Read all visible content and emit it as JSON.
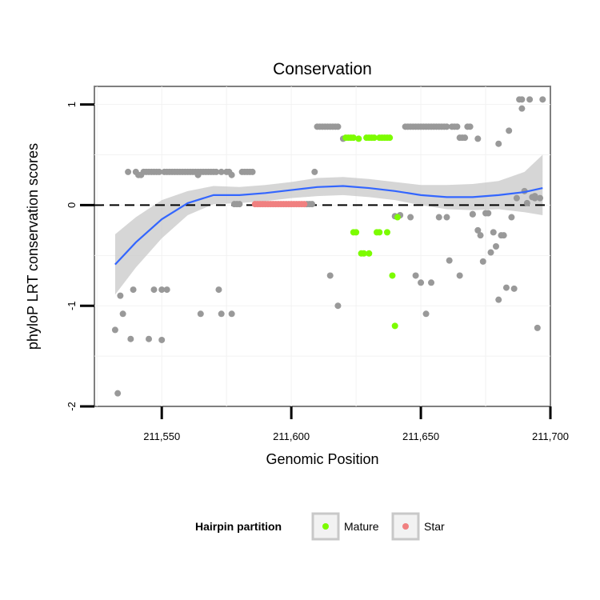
{
  "chart_data": {
    "type": "scatter",
    "title": "Conservation",
    "xlabel": "Genomic Position",
    "ylabel": "phyloP LRT conservation scores",
    "xlim": [
      211524,
      211700
    ],
    "ylim": [
      -2.0,
      1.18
    ],
    "x_ticks": [
      211550,
      211600,
      211650,
      211700
    ],
    "x_tick_labels": [
      "211,550",
      "211,600",
      "211,650",
      "211,700"
    ],
    "y_ticks": [
      -2,
      -1,
      0,
      1
    ],
    "y_tick_labels": [
      "-2",
      "-1",
      "0",
      "1"
    ],
    "grid": true,
    "reference_line": {
      "y": 0,
      "style": "dashed"
    },
    "legend": {
      "title": "Hairpin partition",
      "placement": "bottom",
      "entries": [
        {
          "label": "Mature",
          "color": "#7cfc00"
        },
        {
          "label": "Star",
          "color": "#f08080"
        }
      ]
    },
    "colors": {
      "other": "#999999",
      "Mature": "#7cfc00",
      "Star": "#f08080",
      "smooth": "#3366ff",
      "ribbon": "#c8c8c8"
    },
    "series": [
      {
        "group": "other",
        "points": [
          [
            211532,
            -1.24
          ],
          [
            211533,
            -1.87
          ],
          [
            211534,
            -0.9
          ],
          [
            211535,
            -1.08
          ],
          [
            211537,
            0.33
          ],
          [
            211538,
            -1.33
          ],
          [
            211539,
            -0.84
          ],
          [
            211540,
            0.33
          ],
          [
            211541,
            0.3
          ],
          [
            211542,
            0.3
          ],
          [
            211543,
            0.33
          ],
          [
            211544,
            0.33
          ],
          [
            211545,
            -1.33
          ],
          [
            211545,
            0.33
          ],
          [
            211546,
            0.33
          ],
          [
            211547,
            -0.84
          ],
          [
            211547,
            0.33
          ],
          [
            211548,
            0.33
          ],
          [
            211549,
            0.33
          ],
          [
            211550,
            -0.84
          ],
          [
            211550,
            -1.34
          ],
          [
            211551,
            0.33
          ],
          [
            211552,
            -0.84
          ],
          [
            211552,
            0.33
          ],
          [
            211553,
            0.33
          ],
          [
            211554,
            0.33
          ],
          [
            211555,
            0.33
          ],
          [
            211556,
            0.33
          ],
          [
            211557,
            0.33
          ],
          [
            211558,
            0.33
          ],
          [
            211559,
            0.33
          ],
          [
            211560,
            0.33
          ],
          [
            211561,
            0.33
          ],
          [
            211562,
            0.33
          ],
          [
            211563,
            0.33
          ],
          [
            211564,
            0.33
          ],
          [
            211564,
            0.3
          ],
          [
            211565,
            -1.08
          ],
          [
            211565,
            0.33
          ],
          [
            211566,
            0.33
          ],
          [
            211567,
            0.33
          ],
          [
            211568,
            0.33
          ],
          [
            211569,
            0.33
          ],
          [
            211570,
            0.33
          ],
          [
            211571,
            0.33
          ],
          [
            211572,
            -0.84
          ],
          [
            211573,
            -1.08
          ],
          [
            211573,
            0.33
          ],
          [
            211575,
            0.33
          ],
          [
            211576,
            0.33
          ],
          [
            211577,
            -1.08
          ],
          [
            211577,
            0.3
          ],
          [
            211578,
            0.01
          ],
          [
            211579,
            0.01
          ],
          [
            211580,
            0.01
          ],
          [
            211581,
            0.33
          ],
          [
            211582,
            0.33
          ],
          [
            211583,
            0.33
          ],
          [
            211584,
            0.33
          ],
          [
            211585,
            0.33
          ],
          [
            211606,
            0.01
          ],
          [
            211607,
            0.01
          ],
          [
            211608,
            0.01
          ],
          [
            211609,
            0.33
          ],
          [
            211610,
            0.78
          ],
          [
            211611,
            0.78
          ],
          [
            211612,
            0.78
          ],
          [
            211613,
            0.78
          ],
          [
            211614,
            0.78
          ],
          [
            211615,
            -0.7
          ],
          [
            211615,
            0.78
          ],
          [
            211616,
            0.78
          ],
          [
            211617,
            0.78
          ],
          [
            211618,
            -1.0
          ],
          [
            211618,
            0.78
          ],
          [
            211620,
            0.66
          ],
          [
            211640,
            -0.11
          ],
          [
            211642,
            -0.1
          ],
          [
            211644,
            0.78
          ],
          [
            211645,
            0.78
          ],
          [
            211646,
            0.78
          ],
          [
            211646,
            -0.12
          ],
          [
            211647,
            0.78
          ],
          [
            211648,
            0.78
          ],
          [
            211648,
            -0.7
          ],
          [
            211649,
            0.78
          ],
          [
            211650,
            0.78
          ],
          [
            211650,
            -0.77
          ],
          [
            211651,
            0.78
          ],
          [
            211652,
            0.78
          ],
          [
            211652,
            -1.08
          ],
          [
            211653,
            0.78
          ],
          [
            211654,
            0.78
          ],
          [
            211654,
            -0.77
          ],
          [
            211655,
            0.78
          ],
          [
            211656,
            0.78
          ],
          [
            211657,
            -0.12
          ],
          [
            211657,
            0.78
          ],
          [
            211658,
            0.78
          ],
          [
            211659,
            0.78
          ],
          [
            211660,
            0.78
          ],
          [
            211660,
            -0.12
          ],
          [
            211661,
            -0.55
          ],
          [
            211662,
            0.78
          ],
          [
            211663,
            0.78
          ],
          [
            211664,
            0.78
          ],
          [
            211665,
            -0.7
          ],
          [
            211665,
            0.67
          ],
          [
            211666,
            0.67
          ],
          [
            211667,
            0.67
          ],
          [
            211668,
            0.78
          ],
          [
            211669,
            0.78
          ],
          [
            211670,
            -0.09
          ],
          [
            211670,
            -0.09
          ],
          [
            211672,
            0.66
          ],
          [
            211672,
            -0.25
          ],
          [
            211673,
            -0.3
          ],
          [
            211674,
            -0.56
          ],
          [
            211675,
            -0.08
          ],
          [
            211676,
            -0.08
          ],
          [
            211677,
            -0.47
          ],
          [
            211678,
            -0.27
          ],
          [
            211679,
            -0.41
          ],
          [
            211680,
            -0.94
          ],
          [
            211680,
            0.61
          ],
          [
            211681,
            -0.3
          ],
          [
            211682,
            -0.3
          ],
          [
            211683,
            -0.82
          ],
          [
            211684,
            0.74
          ],
          [
            211685,
            -0.12
          ],
          [
            211686,
            -0.83
          ],
          [
            211687,
            0.07
          ],
          [
            211688,
            1.05
          ],
          [
            211689,
            0.96
          ],
          [
            211689,
            1.05
          ],
          [
            211690,
            0.14
          ],
          [
            211691,
            0.02
          ],
          [
            211692,
            1.05
          ],
          [
            211693,
            0.08
          ],
          [
            211694,
            0.09
          ],
          [
            211694,
            0.07
          ],
          [
            211695,
            -1.22
          ],
          [
            211696,
            0.07
          ],
          [
            211697,
            1.05
          ]
        ]
      },
      {
        "group": "Mature",
        "points": [
          [
            211621,
            0.67
          ],
          [
            211622,
            0.67
          ],
          [
            211623,
            0.67
          ],
          [
            211624,
            0.67
          ],
          [
            211624,
            -0.27
          ],
          [
            211625,
            -0.27
          ],
          [
            211626,
            0.66
          ],
          [
            211627,
            -0.48
          ],
          [
            211628,
            -0.48
          ],
          [
            211629,
            0.67
          ],
          [
            211630,
            0.67
          ],
          [
            211630,
            -0.48
          ],
          [
            211631,
            0.67
          ],
          [
            211632,
            0.67
          ],
          [
            211633,
            -0.27
          ],
          [
            211634,
            -0.27
          ],
          [
            211634,
            0.67
          ],
          [
            211635,
            0.67
          ],
          [
            211636,
            0.67
          ],
          [
            211637,
            -0.27
          ],
          [
            211637,
            0.67
          ],
          [
            211638,
            0.67
          ],
          [
            211639,
            -0.7
          ],
          [
            211640,
            -1.2
          ],
          [
            211641,
            -0.12
          ]
        ]
      },
      {
        "group": "Star",
        "points": [
          [
            211586,
            0.01
          ],
          [
            211587,
            0.01
          ],
          [
            211588,
            0.01
          ],
          [
            211589,
            0.01
          ],
          [
            211590,
            0.01
          ],
          [
            211591,
            0.01
          ],
          [
            211592,
            0.01
          ],
          [
            211593,
            0.01
          ],
          [
            211594,
            0.01
          ],
          [
            211595,
            0.01
          ],
          [
            211596,
            0.01
          ],
          [
            211597,
            0.01
          ],
          [
            211598,
            0.01
          ],
          [
            211599,
            0.01
          ],
          [
            211600,
            0.01
          ],
          [
            211601,
            0.01
          ],
          [
            211602,
            0.01
          ],
          [
            211603,
            0.01
          ],
          [
            211604,
            0.01
          ],
          [
            211605,
            0.01
          ]
        ]
      }
    ],
    "smooth": {
      "x": [
        211532,
        211540,
        211550,
        211560,
        211570,
        211580,
        211590,
        211600,
        211610,
        211620,
        211630,
        211640,
        211650,
        211660,
        211670,
        211680,
        211690,
        211697
      ],
      "y": [
        -0.59,
        -0.37,
        -0.14,
        0.02,
        0.1,
        0.1,
        0.12,
        0.15,
        0.18,
        0.19,
        0.17,
        0.14,
        0.1,
        0.08,
        0.08,
        0.1,
        0.13,
        0.17
      ],
      "lower": [
        -0.89,
        -0.62,
        -0.33,
        -0.1,
        0.01,
        0.02,
        0.04,
        0.07,
        0.09,
        0.1,
        0.08,
        0.05,
        0.0,
        -0.04,
        -0.05,
        -0.04,
        -0.07,
        -0.1
      ],
      "upper": [
        -0.29,
        -0.12,
        0.05,
        0.14,
        0.19,
        0.18,
        0.2,
        0.23,
        0.27,
        0.28,
        0.26,
        0.23,
        0.2,
        0.2,
        0.21,
        0.24,
        0.33,
        0.5
      ]
    }
  }
}
